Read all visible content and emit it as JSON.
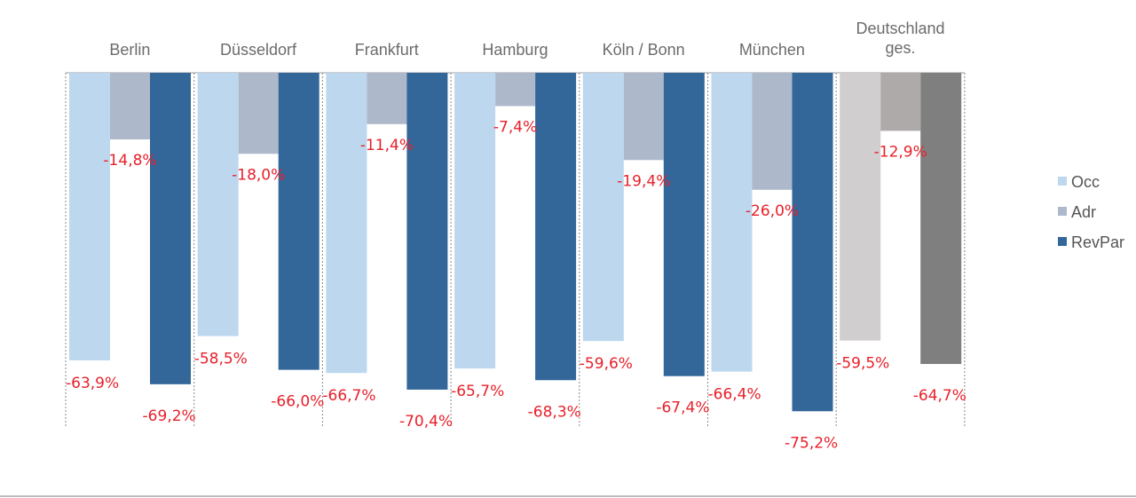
{
  "chart_data": {
    "type": "bar",
    "title": "",
    "xlabel": "",
    "ylabel": "",
    "ylim": [
      -80,
      0
    ],
    "grid": false,
    "legend_position": "right",
    "categories": [
      "Berlin",
      "Düsseldorf",
      "Frankfurt",
      "Hamburg",
      "Köln / Bonn",
      "München",
      [
        "Deutschland",
        "ges."
      ]
    ],
    "series": [
      {
        "name": "Occ",
        "color": "#bdd7ee",
        "values": [
          -63.9,
          -58.5,
          -66.7,
          -65.7,
          -59.6,
          -66.4,
          -59.5
        ],
        "labels": [
          "-63,9%",
          "-58,5%",
          "-66,7%",
          "-65,7%",
          "-59,6%",
          "-66,4%",
          "-59,5%"
        ]
      },
      {
        "name": "Adr",
        "color": "#adb9ca",
        "values": [
          -14.8,
          -18.0,
          -11.4,
          -7.4,
          -19.4,
          -26.0,
          -12.9
        ],
        "labels": [
          "-14,8%",
          "-18,0%",
          "-11,4%",
          "-7,4%",
          "-19,4%",
          "-26,0%",
          "-12,9%"
        ]
      },
      {
        "name": "RevPar",
        "color": "#336699",
        "values": [
          -69.2,
          -66.0,
          -70.4,
          -68.3,
          -67.4,
          -75.2,
          -64.7
        ],
        "labels": [
          "-69,2%",
          "-66,0%",
          "-70,4%",
          "-68,3%",
          "-67,4%",
          "-75,2%",
          "-64,7%"
        ]
      }
    ],
    "highlight_category_colors": {
      "category": "Deutschland ges.",
      "colors": [
        "#d0cece",
        "#aeaaaa",
        "#7f7f7f"
      ]
    },
    "label_color": "#e8202a"
  }
}
